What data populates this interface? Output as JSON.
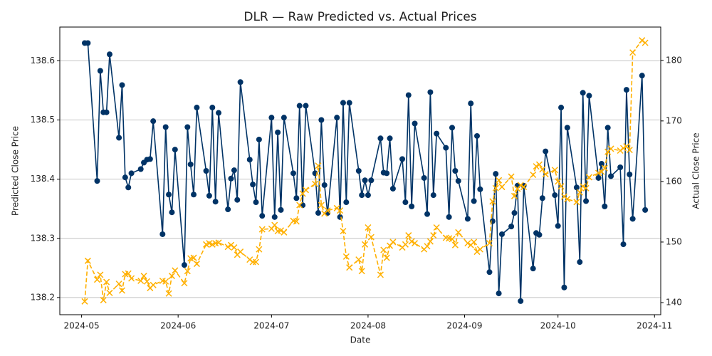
{
  "chart_data": {
    "type": "line",
    "title": "DLR — Raw Predicted vs. Actual Prices",
    "xlabel": "Date",
    "ylabel": "Predicted Close Price",
    "y2label": "Actual Close Price",
    "grid": true,
    "x": [
      "2024-05-02",
      "2024-05-03",
      "2024-05-06",
      "2024-05-07",
      "2024-05-08",
      "2024-05-09",
      "2024-05-10",
      "2024-05-13",
      "2024-05-14",
      "2024-05-15",
      "2024-05-16",
      "2024-05-17",
      "2024-05-20",
      "2024-05-21",
      "2024-05-22",
      "2024-05-23",
      "2024-05-24",
      "2024-05-27",
      "2024-05-28",
      "2024-05-29",
      "2024-05-30",
      "2024-05-31",
      "2024-06-03",
      "2024-06-04",
      "2024-06-05",
      "2024-06-06",
      "2024-06-07",
      "2024-06-10",
      "2024-06-11",
      "2024-06-12",
      "2024-06-13",
      "2024-06-14",
      "2024-06-17",
      "2024-06-18",
      "2024-06-19",
      "2024-06-20",
      "2024-06-21",
      "2024-06-24",
      "2024-06-25",
      "2024-06-26",
      "2024-06-27",
      "2024-06-28",
      "2024-07-01",
      "2024-07-02",
      "2024-07-03",
      "2024-07-04",
      "2024-07-05",
      "2024-07-08",
      "2024-07-09",
      "2024-07-10",
      "2024-07-11",
      "2024-07-12",
      "2024-07-15",
      "2024-07-16",
      "2024-07-17",
      "2024-07-18",
      "2024-07-19",
      "2024-07-22",
      "2024-07-23",
      "2024-07-24",
      "2024-07-25",
      "2024-07-26",
      "2024-07-29",
      "2024-07-30",
      "2024-07-31",
      "2024-08-01",
      "2024-08-02",
      "2024-08-05",
      "2024-08-06",
      "2024-08-07",
      "2024-08-08",
      "2024-08-09",
      "2024-08-12",
      "2024-08-13",
      "2024-08-14",
      "2024-08-15",
      "2024-08-16",
      "2024-08-19",
      "2024-08-20",
      "2024-08-21",
      "2024-08-22",
      "2024-08-23",
      "2024-08-26",
      "2024-08-27",
      "2024-08-28",
      "2024-08-29",
      "2024-08-30",
      "2024-09-02",
      "2024-09-03",
      "2024-09-04",
      "2024-09-05",
      "2024-09-06",
      "2024-09-09",
      "2024-09-10",
      "2024-09-11",
      "2024-09-12",
      "2024-09-13",
      "2024-09-16",
      "2024-09-17",
      "2024-09-18",
      "2024-09-19",
      "2024-09-20",
      "2024-09-23",
      "2024-09-24",
      "2024-09-25",
      "2024-09-26",
      "2024-09-27",
      "2024-09-30",
      "2024-10-01",
      "2024-10-02",
      "2024-10-03",
      "2024-10-04",
      "2024-10-07",
      "2024-10-08",
      "2024-10-09",
      "2024-10-10",
      "2024-10-11",
      "2024-10-14",
      "2024-10-15",
      "2024-10-16",
      "2024-10-17",
      "2024-10-18",
      "2024-10-21",
      "2024-10-22",
      "2024-10-23",
      "2024-10-24",
      "2024-10-25",
      "2024-10-28",
      "2024-10-29"
    ],
    "series": [
      {
        "color": "#003366",
        "marker": "o",
        "linestyle": "solid",
        "axis": "y",
        "values": [
          138.63,
          138.63,
          138.397,
          138.583,
          138.513,
          138.513,
          138.611,
          138.47,
          138.559,
          138.403,
          138.386,
          138.41,
          138.417,
          138.428,
          138.433,
          138.434,
          138.498,
          138.307,
          138.488,
          138.374,
          138.344,
          138.45,
          138.255,
          138.488,
          138.425,
          138.374,
          138.521,
          138.414,
          138.372,
          138.521,
          138.362,
          138.512,
          138.349,
          138.401,
          138.415,
          138.365,
          138.564,
          138.433,
          138.391,
          138.361,
          138.467,
          138.338,
          138.504,
          138.336,
          138.479,
          138.348,
          138.504,
          138.41,
          138.368,
          138.524,
          138.356,
          138.524,
          138.41,
          138.343,
          138.5,
          138.39,
          138.343,
          138.504,
          138.336,
          138.529,
          138.361,
          138.529,
          138.414,
          138.373,
          138.398,
          138.373,
          138.398,
          138.469,
          138.411,
          138.41,
          138.469,
          138.384,
          138.434,
          138.361,
          138.542,
          138.354,
          138.494,
          138.402,
          138.341,
          138.547,
          138.373,
          138.477,
          138.453,
          138.336,
          138.487,
          138.414,
          138.397,
          138.333,
          138.528,
          138.363,
          138.473,
          138.383,
          138.243,
          138.329,
          138.409,
          138.207,
          138.307,
          138.32,
          138.343,
          138.389,
          138.194,
          138.389,
          138.249,
          138.309,
          138.306,
          138.368,
          138.447,
          138.373,
          138.321,
          138.521,
          138.217,
          138.487,
          138.386,
          138.26,
          138.546,
          138.363,
          138.541,
          138.402,
          138.426,
          138.354,
          138.487,
          138.405,
          138.42,
          138.29,
          138.551,
          138.408,
          138.333,
          138.575,
          138.348
        ]
      },
      {
        "color": "#ffb000",
        "marker": "x",
        "linestyle": "dashed",
        "axis": "y2",
        "values": [
          140.2,
          146.9,
          143.8,
          144.6,
          140.4,
          143.4,
          141.6,
          143.1,
          142.0,
          144.7,
          144.8,
          144.0,
          143.6,
          144.4,
          143.5,
          142.4,
          142.9,
          143.6,
          143.5,
          141.5,
          144.4,
          145.3,
          143.2,
          145.2,
          147.3,
          147.4,
          146.4,
          149.6,
          149.8,
          149.6,
          149.8,
          149.9,
          149.2,
          149.5,
          149.1,
          147.9,
          148.4,
          147.1,
          146.7,
          146.7,
          148.8,
          152.1,
          152.2,
          152.8,
          151.8,
          151.9,
          151.6,
          153.5,
          153.4,
          156.1,
          158.0,
          158.6,
          159.6,
          162.6,
          156.1,
          154.7,
          155.2,
          155.6,
          155.2,
          151.8,
          147.6,
          145.8,
          147.1,
          145.2,
          149.6,
          152.4,
          150.8,
          144.6,
          148.7,
          147.4,
          149.4,
          150.0,
          149.1,
          149.6,
          151.1,
          150.1,
          149.8,
          148.8,
          149.3,
          150.1,
          151.1,
          152.4,
          150.7,
          150.6,
          150.5,
          149.5,
          151.6,
          149.8,
          149.5,
          150.0,
          148.4,
          148.8,
          149.8,
          156.7,
          158.9,
          160.2,
          159.1,
          160.8,
          157.6,
          158.8,
          159.4,
          159.1,
          161.1,
          162.5,
          162.8,
          162.0,
          161.2,
          161.9,
          160.0,
          159.2,
          157.5,
          157.1,
          156.6,
          158.2,
          159.2,
          158.9,
          160.7,
          161.4,
          161.6,
          162.2,
          164.9,
          165.4,
          165.1,
          165.5,
          165.8,
          165.2,
          181.3,
          183.3,
          182.9
        ]
      }
    ],
    "xlim": [
      "2024-04-24",
      "2024-11-03"
    ],
    "xticks": [
      {
        "value": "2024-05-01",
        "label": "2024-05"
      },
      {
        "value": "2024-06-01",
        "label": "2024-06"
      },
      {
        "value": "2024-07-01",
        "label": "2024-07"
      },
      {
        "value": "2024-08-01",
        "label": "2024-08"
      },
      {
        "value": "2024-09-01",
        "label": "2024-09"
      },
      {
        "value": "2024-10-01",
        "label": "2024-10"
      },
      {
        "value": "2024-11-01",
        "label": "2024-11"
      }
    ],
    "ylim": [
      138.171,
      138.657
    ],
    "yticks": [
      138.2,
      138.3,
      138.4,
      138.5,
      138.6
    ],
    "y2lim": [
      138.0,
      185.5
    ],
    "y2ticks": [
      140,
      150,
      160,
      170,
      180
    ]
  }
}
